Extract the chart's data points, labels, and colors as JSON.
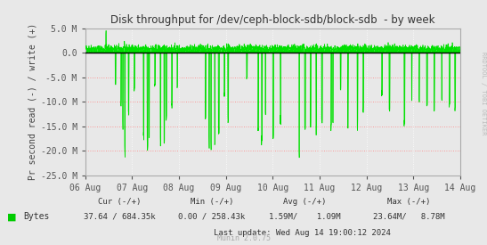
{
  "title": "Disk throughput for /dev/ceph-block-sdb/block-sdb  - by week",
  "ylabel": "Pr second read (-) / write (+)",
  "xlabel_ticks": [
    "06 Aug",
    "07 Aug",
    "08 Aug",
    "09 Aug",
    "10 Aug",
    "11 Aug",
    "12 Aug",
    "13 Aug",
    "14 Aug"
  ],
  "ylim": [
    -25000000,
    5000000
  ],
  "yticks": [
    -25000000,
    -20000000,
    -15000000,
    -10000000,
    -5000000,
    0.0,
    5000000
  ],
  "ytick_labels": [
    "-25.0 M",
    "-20.0 M",
    "-15.0 M",
    "-10.0 M",
    "-5.0 M",
    "0.0",
    "5.0 M"
  ],
  "bg_color": "#e8e8e8",
  "plot_bg_color": "#e8e8e8",
  "grid_color_h": "#ff8080",
  "grid_color_v": "#ffffff",
  "line_color": "#00e000",
  "zero_line_color": "#000000",
  "legend_label": "Bytes",
  "legend_color": "#00cc00",
  "cur_neg": "37.64",
  "cur_pos": "684.35k",
  "min_neg": "0.00",
  "min_pos": "258.43k",
  "avg_neg": "1.59M/",
  "avg_pos": "1.09M",
  "max_neg": "23.64M/",
  "max_pos": "8.78M",
  "last_update": "Last update: Wed Aug 14 19:00:12 2024",
  "munin_version": "Munin 2.0.75",
  "rrdtool_label": "RRDTOOL / TOBI OETIKER",
  "n_points": 2000,
  "seed": 42
}
